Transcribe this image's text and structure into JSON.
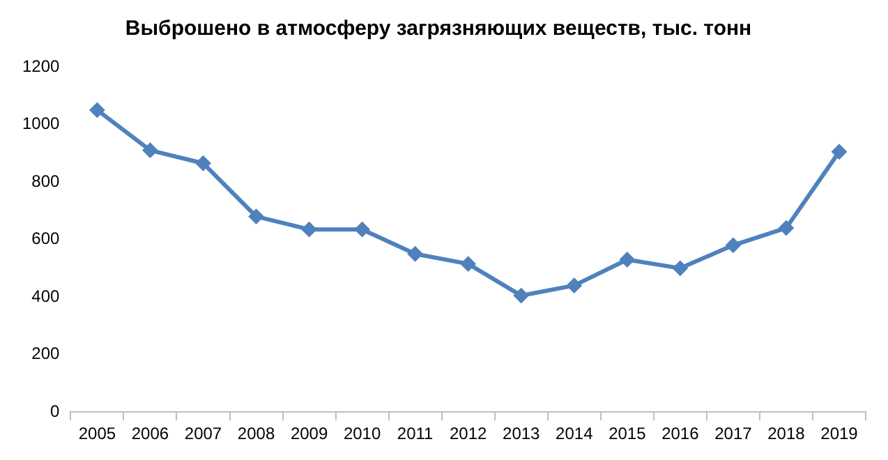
{
  "chart_data": {
    "type": "line",
    "title": "Выброшено в атмосферу загрязняющих веществ, тыс. тонн",
    "categories": [
      "2005",
      "2006",
      "2007",
      "2008",
      "2009",
      "2010",
      "2011",
      "2012",
      "2013",
      "2014",
      "2015",
      "2016",
      "2017",
      "2018",
      "2019"
    ],
    "series": [
      {
        "color": "#4f81bd",
        "values": [
          1050,
          910,
          865,
          680,
          635,
          635,
          550,
          515,
          405,
          440,
          530,
          500,
          580,
          640,
          905
        ]
      }
    ],
    "ylim": [
      0,
      1200
    ],
    "yticks": [
      0,
      200,
      400,
      600,
      800,
      1000,
      1200
    ],
    "grid": false,
    "legend": false,
    "marker": "diamond",
    "line_style": "solid"
  }
}
